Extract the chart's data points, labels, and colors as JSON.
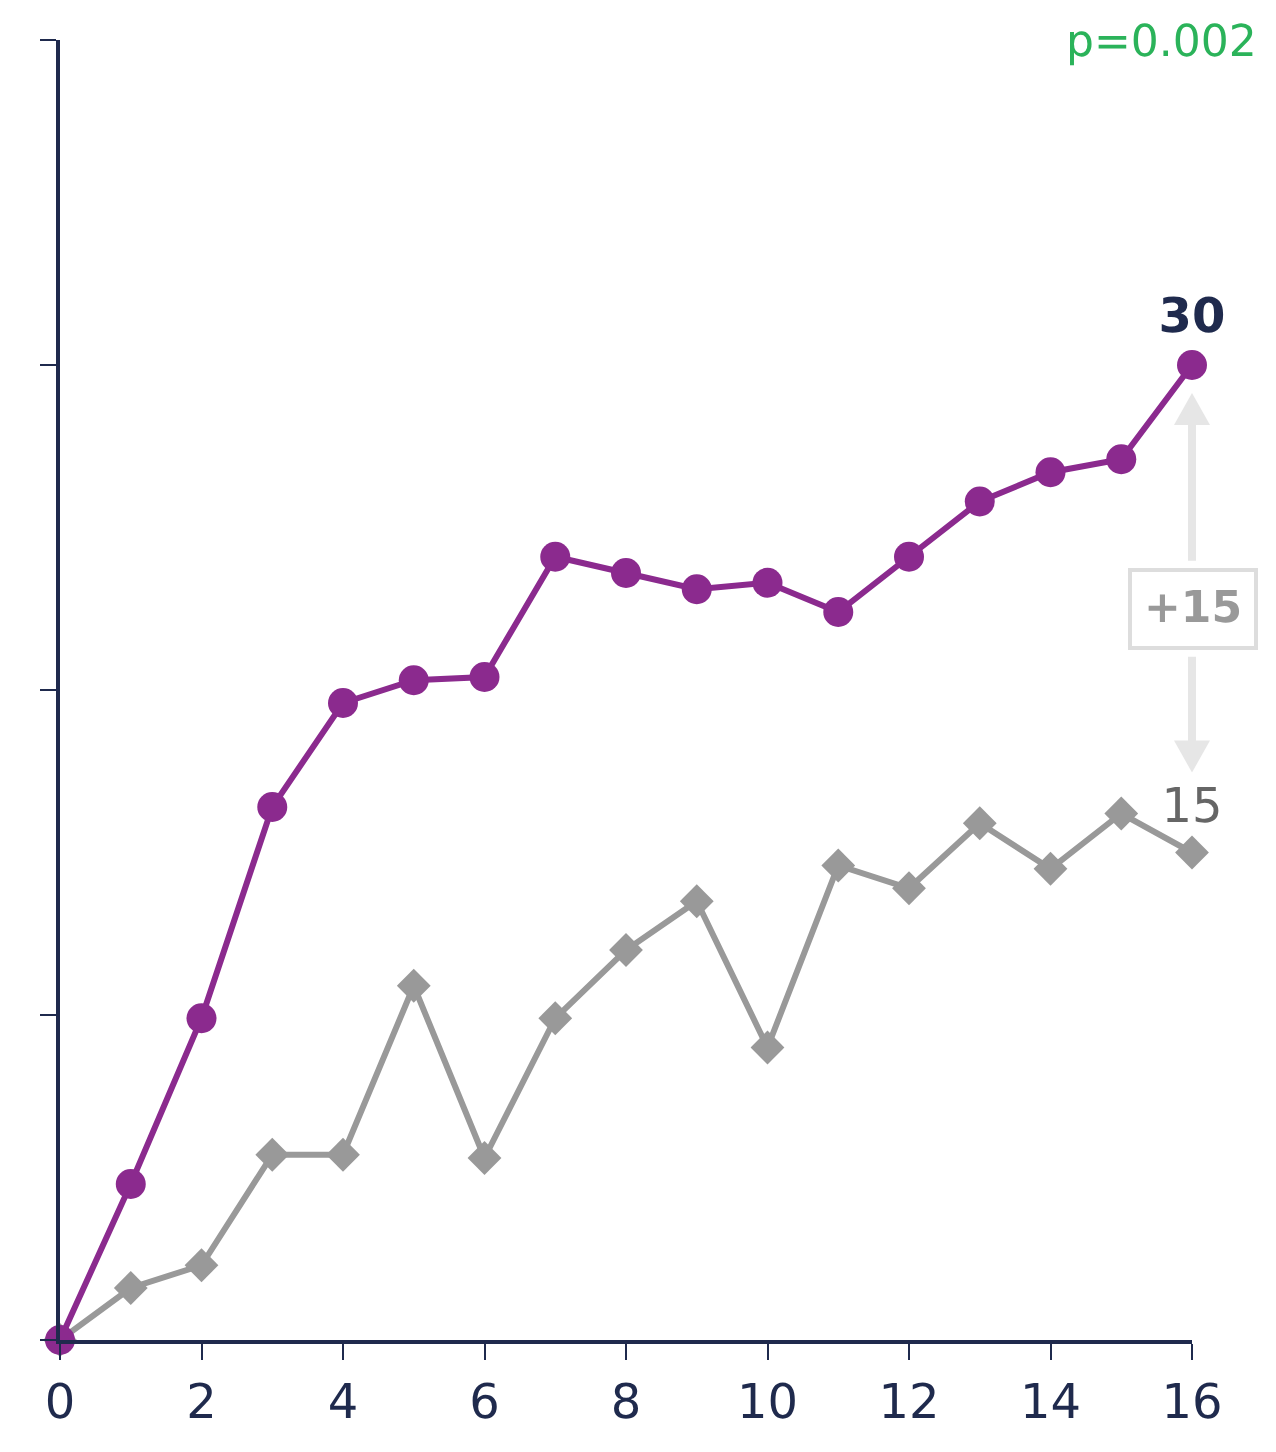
{
  "chart_data": {
    "type": "line",
    "x": [
      0,
      1,
      2,
      3,
      4,
      5,
      6,
      7,
      8,
      9,
      10,
      11,
      12,
      13,
      14,
      15,
      16
    ],
    "series": [
      {
        "color": "#8b2a8e",
        "marker": "circle",
        "values": [
          0,
          4.8,
          9.9,
          16.4,
          19.6,
          20.3,
          20.4,
          24.1,
          23.6,
          23.1,
          23.3,
          22.4,
          24.1,
          25.8,
          26.7,
          27.1,
          30
        ],
        "value_labels": [
          null,
          null,
          null,
          null,
          null,
          null,
          null,
          null,
          null,
          null,
          null,
          null,
          null,
          null,
          null,
          null,
          "30"
        ]
      },
      {
        "color": "#999999",
        "marker": "diamond",
        "values": [
          0,
          1.6,
          2.3,
          5.7,
          5.7,
          10.9,
          5.6,
          9.9,
          12,
          13.5,
          9,
          14.6,
          13.9,
          15.9,
          14.5,
          16.2,
          15
        ],
        "value_labels": [
          null,
          null,
          null,
          null,
          null,
          null,
          null,
          null,
          null,
          null,
          null,
          null,
          null,
          null,
          null,
          null,
          "15"
        ]
      }
    ],
    "xlim": [
      0,
      16
    ],
    "xticks": [
      0,
      2,
      4,
      6,
      8,
      10,
      12,
      14,
      16
    ],
    "ylim": [
      0,
      40
    ],
    "yticks": [
      {
        "value": 0,
        "label": null
      },
      {
        "value": 10,
        "label": null
      },
      {
        "value": 20,
        "label": null
      },
      {
        "value": 30,
        "label": null
      },
      {
        "value": 40,
        "label": null
      }
    ],
    "tick_labels": "x",
    "grid": false,
    "line_style": "solid",
    "annotations": [
      "+15",
      "p=0.002"
    ]
  }
}
